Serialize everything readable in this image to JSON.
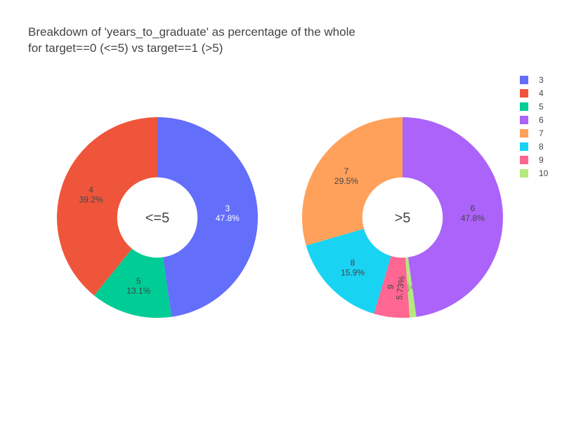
{
  "chart_data": {
    "type": "pie",
    "title": "Breakdown of 'years_to_graduate' as percentage of the whole\nfor target==0 (<=5) vs target==1 (>5)",
    "legend_position": "top-right",
    "legend": [
      {
        "label": "3",
        "color": "#636efa"
      },
      {
        "label": "4",
        "color": "#ef553b"
      },
      {
        "label": "5",
        "color": "#00cc96"
      },
      {
        "label": "6",
        "color": "#ab63fa"
      },
      {
        "label": "7",
        "color": "#ffa15a"
      },
      {
        "label": "8",
        "color": "#19d3f3"
      },
      {
        "label": "9",
        "color": "#ff6692"
      },
      {
        "label": "10",
        "color": "#b6e880"
      }
    ],
    "pies": [
      {
        "center_label": "<=5",
        "slices": [
          {
            "label": "3",
            "percent": 47.8,
            "percent_text": "47.8%",
            "color": "#636efa"
          },
          {
            "label": "5",
            "percent": 13.1,
            "percent_text": "13.1%",
            "color": "#00cc96"
          },
          {
            "label": "4",
            "percent": 39.2,
            "percent_text": "39.2%",
            "color": "#ef553b"
          }
        ]
      },
      {
        "center_label": ">5",
        "slices": [
          {
            "label": "6",
            "percent": 47.8,
            "percent_text": "47.8%",
            "color": "#ab63fa"
          },
          {
            "label": "10",
            "percent": 1.07,
            "percent_text": "1.07%",
            "color": "#b6e880"
          },
          {
            "label": "9",
            "percent": 5.73,
            "percent_text": "5.73%",
            "color": "#ff6692"
          },
          {
            "label": "8",
            "percent": 15.9,
            "percent_text": "15.9%",
            "color": "#19d3f3"
          },
          {
            "label": "7",
            "percent": 29.5,
            "percent_text": "29.5%",
            "color": "#ffa15a"
          }
        ]
      }
    ]
  }
}
